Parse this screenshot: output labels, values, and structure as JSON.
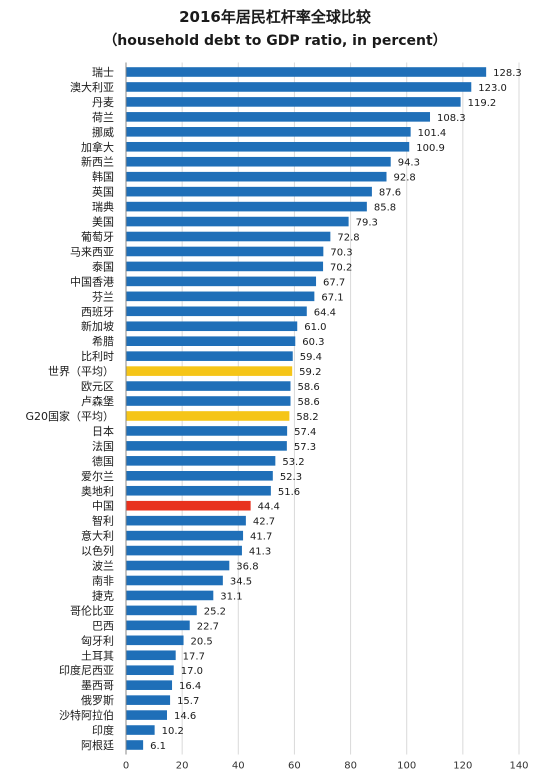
{
  "chart_data": {
    "type": "bar",
    "orientation": "horizontal",
    "title": "2016年居民杠杆率全球比较",
    "subtitle": "（household debt to GDP ratio, in percent）",
    "xlim": [
      0,
      140
    ],
    "xticks": [
      0,
      20,
      40,
      60,
      80,
      100,
      120,
      140
    ],
    "xtick_labels": [
      "0",
      "20",
      "40",
      "60",
      "80",
      "100",
      "120",
      "140"
    ],
    "grid": true,
    "categories": [
      "瑞士",
      "澳大利亚",
      "丹麦",
      "荷兰",
      "挪威",
      "加拿大",
      "新西兰",
      "韩国",
      "英国",
      "瑞典",
      "美国",
      "葡萄牙",
      "马来西亚",
      "泰国",
      "中国香港",
      "芬兰",
      "西班牙",
      "新加坡",
      "希腊",
      "比利时",
      "世界（平均）",
      "欧元区",
      "卢森堡",
      "G20国家（平均）",
      "日本",
      "法国",
      "德国",
      "爱尔兰",
      "奥地利",
      "中国",
      "智利",
      "意大利",
      "以色列",
      "波兰",
      "南非",
      "捷克",
      "哥伦比亚",
      "巴西",
      "匈牙利",
      "土耳其",
      "印度尼西亚",
      "墨西哥",
      "俄罗斯",
      "沙特阿拉伯",
      "印度",
      "阿根廷"
    ],
    "values": [
      128.3,
      123.0,
      119.2,
      108.3,
      101.4,
      100.9,
      94.3,
      92.8,
      87.6,
      85.8,
      79.3,
      72.8,
      70.3,
      70.2,
      67.7,
      67.1,
      64.4,
      61.0,
      60.3,
      59.4,
      59.2,
      58.6,
      58.6,
      58.2,
      57.4,
      57.3,
      53.2,
      52.3,
      51.6,
      44.4,
      42.7,
      41.7,
      41.3,
      36.8,
      34.5,
      31.1,
      25.2,
      22.7,
      20.5,
      17.7,
      17.0,
      16.4,
      15.7,
      14.6,
      10.2,
      6.1
    ],
    "value_labels": [
      "128.3",
      "123.0",
      "119.2",
      "108.3",
      "101.4",
      "100.9",
      "94.3",
      "92.8",
      "87.6",
      "85.8",
      "79.3",
      "72.8",
      "70.3",
      "70.2",
      "67.7",
      "67.1",
      "64.4",
      "61.0",
      "60.3",
      "59.4",
      "59.2",
      "58.6",
      "58.6",
      "58.2",
      "57.4",
      "57.3",
      "53.2",
      "52.3",
      "51.6",
      "44.4",
      "42.7",
      "41.7",
      "41.3",
      "36.8",
      "34.5",
      "31.1",
      "25.2",
      "22.7",
      "20.5",
      "17.7",
      "17.0",
      "16.4",
      "15.7",
      "14.6",
      "10.2",
      "6.1"
    ],
    "highlights": {
      "世界（平均）": "#f5c518",
      "G20国家（平均）": "#f5c518",
      "中国": "#e8321e"
    },
    "colors": {
      "default": "#1f6fb8",
      "grid": "#d9d9d9",
      "axis": "#888888"
    }
  }
}
